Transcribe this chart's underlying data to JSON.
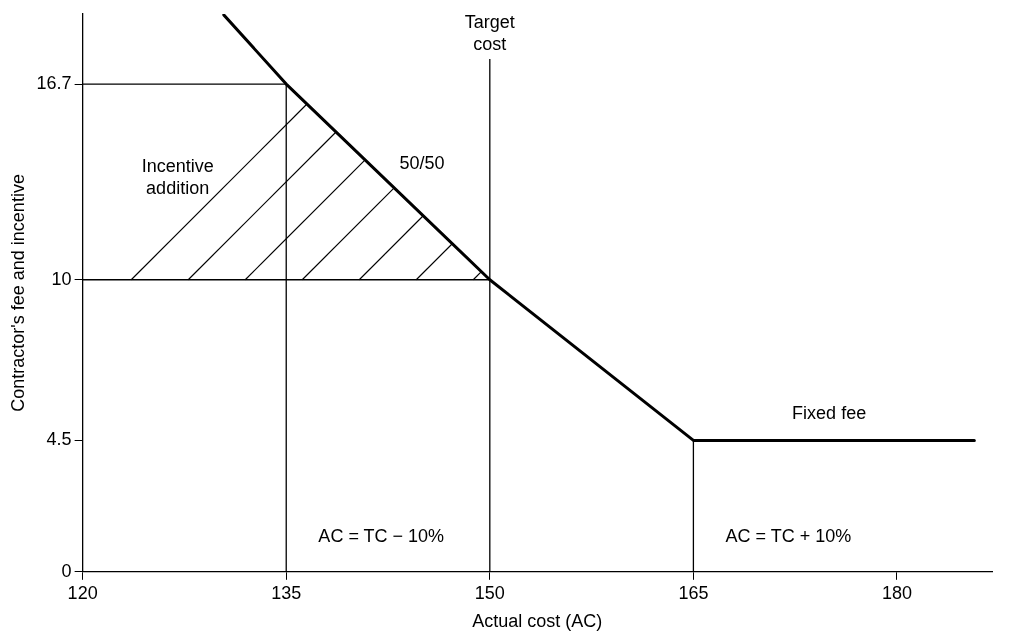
{
  "chart_data": {
    "type": "line",
    "xlabel": "Actual cost (AC)",
    "ylabel": "Contractor's fee and incentive",
    "xlim": [
      120,
      187
    ],
    "xticks": [
      120,
      135,
      150,
      165,
      180
    ],
    "ylim": [
      0,
      19.1
    ],
    "yticks": [
      0,
      4.5,
      10,
      16.7
    ],
    "series": [
      {
        "color": "#000000",
        "x": [
          130.4,
          135,
          150,
          165,
          185.7
        ],
        "values": [
          19.07,
          16.7,
          10,
          4.5,
          4.5
        ]
      },
      {
        "color": "#000000",
        "x": [
          120,
          135,
          135
        ],
        "values": [
          16.7,
          16.7,
          0
        ]
      },
      {
        "color": "#000000",
        "x": [
          120,
          150
        ],
        "values": [
          10,
          10
        ]
      },
      {
        "color": "#000000",
        "x": [
          165,
          165
        ],
        "values": [
          4.5,
          0
        ]
      }
    ],
    "ref_lines": [
      {
        "axis": "x",
        "value": 150,
        "label": "Target cost"
      }
    ],
    "annotations": [
      {
        "text": "50/50",
        "x": 142.5,
        "y": 13.35
      },
      "Incentive addition",
      "Fixed fee",
      "AC = TC − 10%",
      "AC = TC + 10%"
    ],
    "grid": false,
    "legend": false,
    "marker": "none",
    "line_style": "solid"
  }
}
